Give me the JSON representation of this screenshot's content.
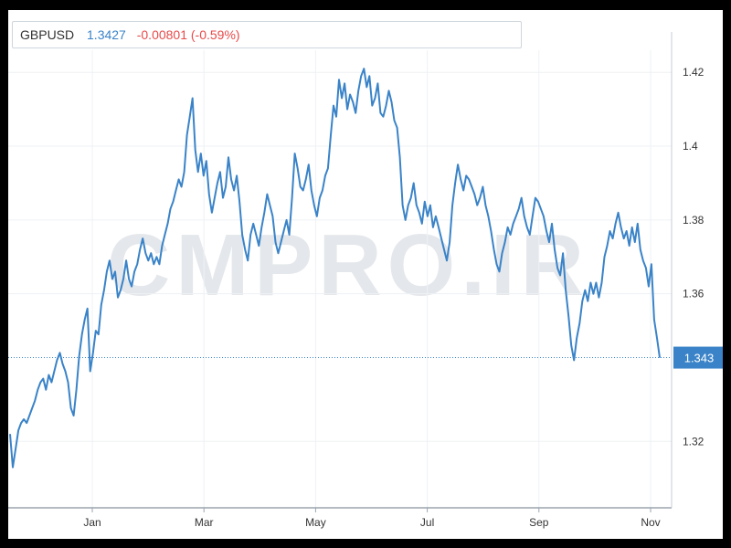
{
  "header": {
    "symbol": "GBPUSD",
    "last": "1.3427",
    "change": "-0.00801 (-0.59%)"
  },
  "watermark": "CMPRO.IR",
  "colors": {
    "line": "#3a83c8",
    "price_tag": "#3a83c8",
    "change": "#e84a4a",
    "grid": "#eef1f4"
  },
  "chart_data": {
    "type": "line",
    "title": "",
    "xlabel": "",
    "ylabel": "",
    "x_ticks": [
      "Jan",
      "Mar",
      "May",
      "Jul",
      "Sep",
      "Nov"
    ],
    "y_ticks": [
      "1.32",
      "1.36",
      "1.38",
      "1.4",
      "1.42"
    ],
    "ylim": [
      1.302,
      1.426
    ],
    "last_price_label": "1.343",
    "last_price": 1.3427,
    "grid": true,
    "series": [
      {
        "values": [
          1.322,
          1.313,
          1.318,
          1.323,
          1.325,
          1.326,
          1.325,
          1.327,
          1.329,
          1.331,
          1.334,
          1.336,
          1.337,
          1.334,
          1.338,
          1.336,
          1.339,
          1.342,
          1.344,
          1.341,
          1.339,
          1.336,
          1.329,
          1.327,
          1.334,
          1.343,
          1.349,
          1.353,
          1.356,
          1.339,
          1.344,
          1.35,
          1.349,
          1.357,
          1.361,
          1.366,
          1.369,
          1.364,
          1.366,
          1.359,
          1.361,
          1.364,
          1.369,
          1.364,
          1.362,
          1.366,
          1.368,
          1.372,
          1.375,
          1.371,
          1.369,
          1.371,
          1.368,
          1.37,
          1.368,
          1.373,
          1.376,
          1.379,
          1.383,
          1.385,
          1.388,
          1.391,
          1.389,
          1.393,
          1.403,
          1.408,
          1.413,
          1.399,
          1.393,
          1.398,
          1.392,
          1.396,
          1.387,
          1.382,
          1.386,
          1.39,
          1.393,
          1.386,
          1.389,
          1.397,
          1.391,
          1.388,
          1.392,
          1.385,
          1.376,
          1.372,
          1.369,
          1.376,
          1.379,
          1.376,
          1.373,
          1.378,
          1.382,
          1.387,
          1.384,
          1.381,
          1.374,
          1.371,
          1.374,
          1.377,
          1.38,
          1.376,
          1.386,
          1.398,
          1.394,
          1.389,
          1.388,
          1.391,
          1.395,
          1.388,
          1.384,
          1.381,
          1.386,
          1.388,
          1.392,
          1.394,
          1.403,
          1.411,
          1.408,
          1.418,
          1.413,
          1.417,
          1.41,
          1.414,
          1.412,
          1.409,
          1.415,
          1.419,
          1.421,
          1.416,
          1.419,
          1.411,
          1.413,
          1.417,
          1.409,
          1.408,
          1.411,
          1.415,
          1.412,
          1.407,
          1.405,
          1.397,
          1.384,
          1.38,
          1.384,
          1.386,
          1.39,
          1.384,
          1.382,
          1.379,
          1.385,
          1.381,
          1.384,
          1.378,
          1.381,
          1.378,
          1.375,
          1.372,
          1.369,
          1.374,
          1.384,
          1.39,
          1.395,
          1.391,
          1.388,
          1.392,
          1.391,
          1.389,
          1.387,
          1.384,
          1.386,
          1.389,
          1.384,
          1.381,
          1.377,
          1.372,
          1.368,
          1.366,
          1.371,
          1.374,
          1.378,
          1.376,
          1.379,
          1.381,
          1.383,
          1.386,
          1.381,
          1.378,
          1.376,
          1.381,
          1.386,
          1.385,
          1.383,
          1.381,
          1.377,
          1.374,
          1.379,
          1.372,
          1.367,
          1.365,
          1.371,
          1.361,
          1.354,
          1.346,
          1.342,
          1.348,
          1.352,
          1.358,
          1.361,
          1.358,
          1.363,
          1.36,
          1.363,
          1.359,
          1.363,
          1.37,
          1.373,
          1.377,
          1.375,
          1.379,
          1.382,
          1.378,
          1.375,
          1.377,
          1.373,
          1.378,
          1.374,
          1.379,
          1.372,
          1.369,
          1.367,
          1.362,
          1.368,
          1.353,
          1.348,
          1.3427
        ]
      }
    ]
  }
}
